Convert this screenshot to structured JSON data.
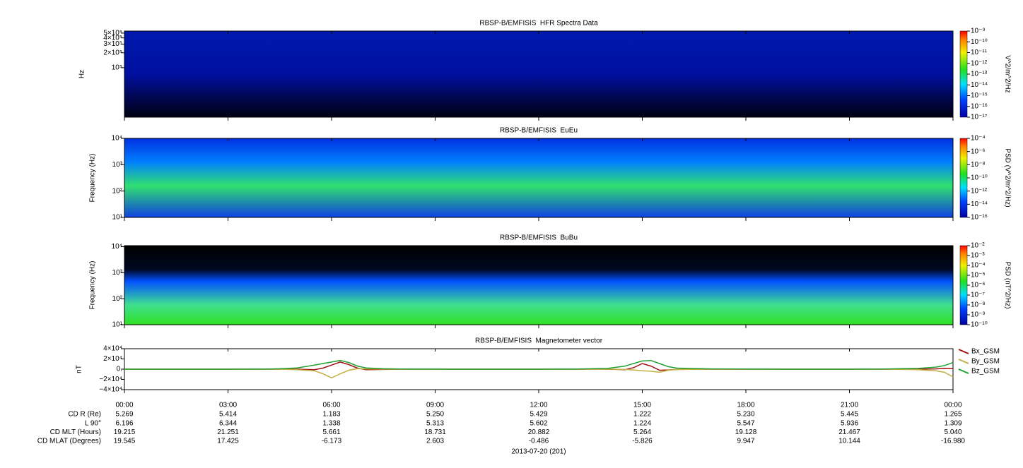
{
  "chart_data": [
    {
      "type": "spectrogram",
      "title": "RBSP-B/EMFISIS  HFR Spectra Data",
      "ylabel": "Hz",
      "ylog": true,
      "ylim": [
        10000,
        550000
      ],
      "yticks": [
        {
          "value": 100000,
          "label": "10⁵"
        },
        {
          "value": 200000,
          "label": "2×10⁵"
        },
        {
          "value": 300000,
          "label": "3×10⁵"
        },
        {
          "value": 400000,
          "label": "4×10⁵"
        },
        {
          "value": 500000,
          "label": "5×10⁵"
        }
      ],
      "zlabel": "V^2/m^2/Hz",
      "zlim": [
        1e-17,
        1e-09
      ],
      "zticks": [
        {
          "value": 1e-09,
          "label": "10⁻⁹"
        },
        {
          "value": 1e-10,
          "label": "10⁻¹⁰"
        },
        {
          "value": 1e-11,
          "label": "10⁻¹¹"
        },
        {
          "value": 1e-12,
          "label": "10⁻¹²"
        },
        {
          "value": 1e-13,
          "label": "10⁻¹³"
        },
        {
          "value": 1e-14,
          "label": "10⁻¹⁴"
        },
        {
          "value": 1e-15,
          "label": "10⁻¹⁵"
        },
        {
          "value": 1e-16,
          "label": "10⁻¹⁶"
        },
        {
          "value": 1e-17,
          "label": "10⁻¹⁷"
        }
      ]
    },
    {
      "type": "spectrogram",
      "title": "RBSP-B/EMFISIS  EuEu",
      "ylabel": "Frequency (Hz)",
      "ylog": true,
      "ylim": [
        10,
        10000
      ],
      "yticks": [
        {
          "value": 10,
          "label": "10¹"
        },
        {
          "value": 100,
          "label": "10²"
        },
        {
          "value": 1000,
          "label": "10³"
        },
        {
          "value": 10000,
          "label": "10⁴"
        }
      ],
      "zlabel": "PSD (V^2/m^2/Hz)",
      "zlim": [
        1e-16,
        0.0001
      ],
      "zticks": [
        {
          "value": 0.0001,
          "label": "10⁻⁴"
        },
        {
          "value": 1e-06,
          "label": "10⁻⁶"
        },
        {
          "value": 1e-08,
          "label": "10⁻⁸"
        },
        {
          "value": 1e-10,
          "label": "10⁻¹⁰"
        },
        {
          "value": 1e-12,
          "label": "10⁻¹²"
        },
        {
          "value": 1e-14,
          "label": "10⁻¹⁴"
        },
        {
          "value": 1e-16,
          "label": "10⁻¹⁶"
        }
      ]
    },
    {
      "type": "spectrogram",
      "title": "RBSP-B/EMFISIS  BuBu",
      "ylabel": "Frequency (Hz)",
      "ylog": true,
      "ylim": [
        10,
        11000
      ],
      "yticks": [
        {
          "value": 10,
          "label": "10¹"
        },
        {
          "value": 100,
          "label": "10²"
        },
        {
          "value": 1000,
          "label": "10³"
        },
        {
          "value": 10000,
          "label": "10⁴"
        }
      ],
      "zlabel": "PSD (nT^2/Hz)",
      "zlim": [
        1e-10,
        0.01
      ],
      "zticks": [
        {
          "value": 0.01,
          "label": "10⁻²"
        },
        {
          "value": 0.001,
          "label": "10⁻³"
        },
        {
          "value": 0.0001,
          "label": "10⁻⁴"
        },
        {
          "value": 1e-05,
          "label": "10⁻⁵"
        },
        {
          "value": 1e-06,
          "label": "10⁻⁶"
        },
        {
          "value": 1e-07,
          "label": "10⁻⁷"
        },
        {
          "value": 1e-08,
          "label": "10⁻⁸"
        },
        {
          "value": 1e-09,
          "label": "10⁻⁹"
        },
        {
          "value": 1e-10,
          "label": "10⁻¹⁰"
        }
      ]
    },
    {
      "type": "line",
      "title": "RBSP-B/EMFISIS  Magnetometer vector",
      "ylabel": "nT",
      "ylim": [
        -40000,
        40000
      ],
      "yticks": [
        {
          "value": 40000,
          "label": "4×10⁴"
        },
        {
          "value": 20000,
          "label": "2×10⁴"
        },
        {
          "value": 0,
          "label": "0."
        },
        {
          "value": -20000,
          "label": "−2×10⁴"
        },
        {
          "value": -40000,
          "label": "−4×10⁴"
        }
      ],
      "xlim": [
        0,
        24
      ],
      "xticks": [
        {
          "value": 0,
          "label": "00:00"
        },
        {
          "value": 3,
          "label": "03:00"
        },
        {
          "value": 6,
          "label": "06:00"
        },
        {
          "value": 9,
          "label": "09:00"
        },
        {
          "value": 12,
          "label": "12:00"
        },
        {
          "value": 15,
          "label": "15:00"
        },
        {
          "value": 18,
          "label": "18:00"
        },
        {
          "value": 21,
          "label": "21:00"
        },
        {
          "value": 24,
          "label": "00:00"
        }
      ],
      "xlabel": "2013-07-20 (201)",
      "x": [
        0,
        1,
        2,
        3,
        4,
        4.5,
        5,
        5.5,
        5.75,
        6,
        6.25,
        6.5,
        6.75,
        7,
        7.5,
        8,
        10,
        12,
        13,
        14,
        14.5,
        14.75,
        15,
        15.25,
        15.5,
        15.75,
        16,
        17,
        19,
        21,
        22,
        23,
        23.5,
        23.75,
        24
      ],
      "series": [
        {
          "name": "Bx_GSM",
          "color": "#a01010",
          "values": [
            0,
            0,
            0,
            0,
            0,
            0,
            0,
            -1000,
            2000,
            8000,
            14000,
            9000,
            2000,
            -1000,
            -500,
            0,
            0,
            0,
            0,
            0,
            -1000,
            3000,
            11000,
            6000,
            -2000,
            -1500,
            -500,
            0,
            0,
            0,
            0,
            0,
            500,
            1500,
            1000
          ]
        },
        {
          "name": "By_GSM",
          "color": "#c0b040",
          "values": [
            0,
            0,
            0,
            0,
            0,
            0,
            -1000,
            -3000,
            -9000,
            -17000,
            -9000,
            -2000,
            1000,
            500,
            0,
            0,
            0,
            0,
            0,
            0,
            -500,
            -1500,
            -3000,
            -4000,
            -6000,
            -2000,
            -500,
            0,
            0,
            0,
            0,
            -1000,
            -3000,
            -6000,
            -15000
          ]
        },
        {
          "name": "Bz_GSM",
          "color": "#20a030",
          "values": [
            0,
            0,
            0,
            0,
            200,
            800,
            2500,
            8000,
            11000,
            14000,
            17000,
            13000,
            6000,
            2500,
            800,
            300,
            0,
            0,
            200,
            1500,
            6000,
            11000,
            16000,
            17000,
            11000,
            5000,
            2000,
            500,
            0,
            0,
            300,
            1500,
            4000,
            7000,
            13000
          ]
        }
      ],
      "ephemeris": {
        "rows": [
          {
            "label": "CD R (Re)",
            "values": [
              "5.269",
              "5.414",
              "1.183",
              "5.250",
              "5.429",
              "1.222",
              "5.230",
              "5.445",
              "1.265"
            ]
          },
          {
            "label": "L 90°",
            "values": [
              "6.196",
              "6.344",
              "1.338",
              "5.313",
              "5.602",
              "1.224",
              "5.547",
              "5.936",
              "1.309"
            ]
          },
          {
            "label": "CD MLT (Hours)",
            "values": [
              "19.215",
              "21.251",
              "5.661",
              "18.731",
              "20.882",
              "5.264",
              "19.128",
              "21.467",
              "5.040"
            ]
          },
          {
            "label": "CD MLAT (Degrees)",
            "values": [
              "19.545",
              "17.425",
              "-6.173",
              "2.603",
              "-0.486",
              "-5.826",
              "9.947",
              "10.144",
              "-16.980"
            ]
          }
        ]
      }
    }
  ]
}
